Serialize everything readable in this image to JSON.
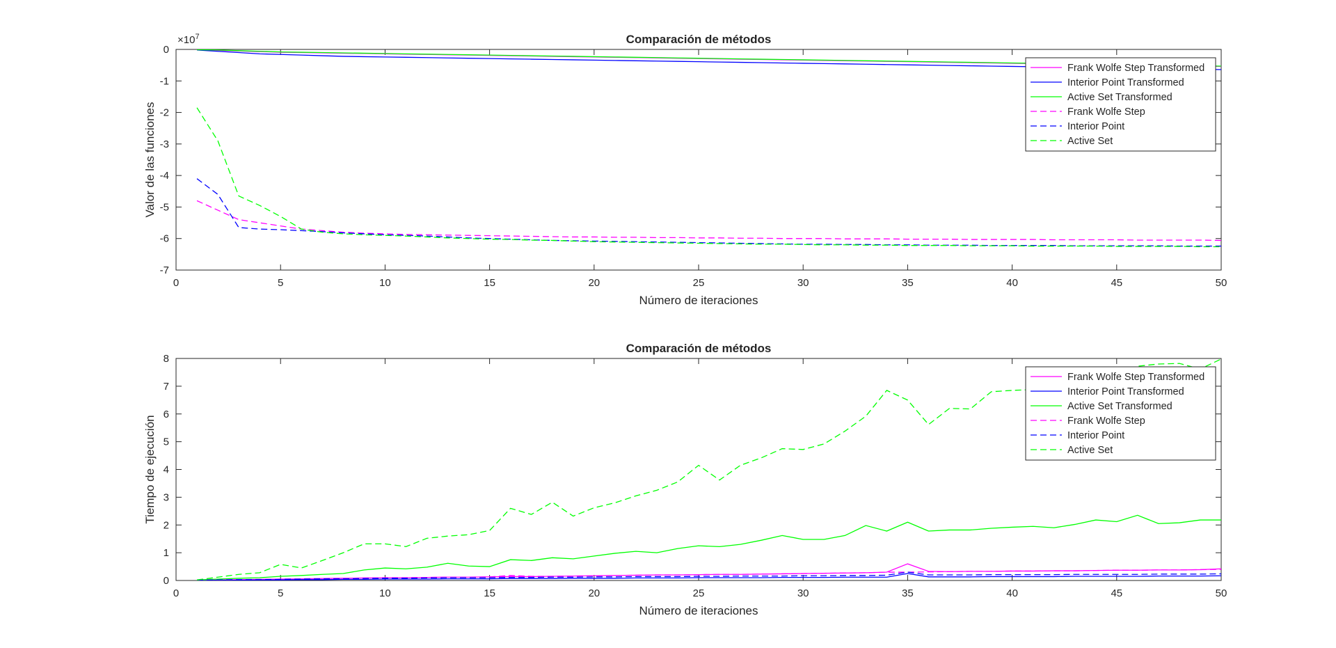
{
  "figure": {
    "background": "#ffffff"
  },
  "chart_data": [
    {
      "type": "line",
      "title": "Comparación de métodos",
      "xlabel": "Número de iteraciones",
      "ylabel": "Valor de las funciones",
      "exponent_label": "×10",
      "exponent_power": "7",
      "xlim": [
        0,
        50
      ],
      "ylim": [
        -7,
        0
      ],
      "xticks": [
        0,
        5,
        10,
        15,
        20,
        25,
        30,
        35,
        40,
        45,
        50
      ],
      "yticks": [
        0,
        -1,
        -2,
        -3,
        -4,
        -5,
        -6,
        -7
      ],
      "legend_position": "top-right",
      "grid": false,
      "x": [
        1,
        2,
        3,
        4,
        5,
        6,
        7,
        8,
        9,
        10,
        11,
        12,
        13,
        14,
        15,
        16,
        17,
        18,
        19,
        20,
        21,
        22,
        23,
        24,
        25,
        26,
        27,
        28,
        29,
        30,
        31,
        32,
        33,
        34,
        35,
        36,
        37,
        38,
        39,
        40,
        41,
        42,
        43,
        44,
        45,
        46,
        47,
        48,
        49,
        50
      ],
      "series": [
        {
          "name": "Frank Wolfe Step Transformed",
          "color": "#ff00ff",
          "style": "solid",
          "values": [
            -0.01,
            -0.03,
            -0.05,
            -0.07,
            -0.09,
            -0.1,
            -0.11,
            -0.12,
            -0.13,
            -0.14,
            -0.15,
            -0.16,
            -0.17,
            -0.18,
            -0.19,
            -0.2,
            -0.21,
            -0.22,
            -0.23,
            -0.24,
            -0.25,
            -0.26,
            -0.27,
            -0.28,
            -0.29,
            -0.3,
            -0.31,
            -0.32,
            -0.33,
            -0.34,
            -0.35,
            -0.36,
            -0.37,
            -0.38,
            -0.39,
            -0.4,
            -0.41,
            -0.42,
            -0.43,
            -0.44,
            -0.45,
            -0.46,
            -0.47,
            -0.48,
            -0.49,
            -0.5,
            -0.51,
            -0.52,
            -0.53,
            -0.54
          ]
        },
        {
          "name": "Interior Point Transformed",
          "color": "#0000ff",
          "style": "solid",
          "values": [
            -0.02,
            -0.06,
            -0.1,
            -0.14,
            -0.16,
            -0.18,
            -0.2,
            -0.22,
            -0.23,
            -0.24,
            -0.25,
            -0.26,
            -0.27,
            -0.28,
            -0.29,
            -0.3,
            -0.31,
            -0.32,
            -0.33,
            -0.34,
            -0.35,
            -0.36,
            -0.37,
            -0.38,
            -0.39,
            -0.4,
            -0.41,
            -0.42,
            -0.43,
            -0.44,
            -0.45,
            -0.46,
            -0.47,
            -0.48,
            -0.49,
            -0.5,
            -0.51,
            -0.52,
            -0.53,
            -0.54,
            -0.55,
            -0.56,
            -0.57,
            -0.58,
            -0.59,
            -0.6,
            -0.61,
            -0.62,
            -0.63,
            -0.64
          ]
        },
        {
          "name": "Active Set Transformed",
          "color": "#00ff00",
          "style": "solid",
          "values": [
            -0.01,
            -0.02,
            -0.04,
            -0.06,
            -0.08,
            -0.09,
            -0.1,
            -0.11,
            -0.12,
            -0.13,
            -0.14,
            -0.15,
            -0.16,
            -0.17,
            -0.18,
            -0.19,
            -0.2,
            -0.21,
            -0.22,
            -0.23,
            -0.24,
            -0.25,
            -0.26,
            -0.27,
            -0.28,
            -0.29,
            -0.3,
            -0.31,
            -0.32,
            -0.33,
            -0.34,
            -0.35,
            -0.36,
            -0.37,
            -0.38,
            -0.39,
            -0.4,
            -0.41,
            -0.42,
            -0.43,
            -0.44,
            -0.45,
            -0.46,
            -0.47,
            -0.48,
            -0.49,
            -0.5,
            -0.51,
            -0.52,
            -0.53
          ]
        },
        {
          "name": "Frank Wolfe Step",
          "color": "#ff00ff",
          "style": "dashed",
          "values": [
            -4.8,
            -5.1,
            -5.4,
            -5.5,
            -5.6,
            -5.7,
            -5.75,
            -5.8,
            -5.83,
            -5.85,
            -5.87,
            -5.88,
            -5.89,
            -5.9,
            -5.91,
            -5.92,
            -5.93,
            -5.94,
            -5.95,
            -5.95,
            -5.96,
            -5.96,
            -5.97,
            -5.97,
            -5.98,
            -5.98,
            -5.99,
            -5.99,
            -6.0,
            -6.0,
            -6.0,
            -6.01,
            -6.01,
            -6.01,
            -6.02,
            -6.02,
            -6.02,
            -6.03,
            -6.03,
            -6.03,
            -6.03,
            -6.04,
            -6.04,
            -6.04,
            -6.04,
            -6.05,
            -6.05,
            -6.05,
            -6.05,
            -6.06
          ]
        },
        {
          "name": "Interior Point",
          "color": "#0000ff",
          "style": "dashed",
          "values": [
            -4.1,
            -4.6,
            -5.65,
            -5.7,
            -5.72,
            -5.75,
            -5.78,
            -5.82,
            -5.85,
            -5.88,
            -5.9,
            -5.92,
            -5.95,
            -5.98,
            -6.0,
            -6.02,
            -6.04,
            -6.06,
            -6.07,
            -6.08,
            -6.09,
            -6.1,
            -6.11,
            -6.12,
            -6.13,
            -6.14,
            -6.15,
            -6.16,
            -6.17,
            -6.18,
            -6.18,
            -6.19,
            -6.19,
            -6.2,
            -6.2,
            -6.21,
            -6.21,
            -6.21,
            -6.22,
            -6.22,
            -6.22,
            -6.22,
            -6.23,
            -6.23,
            -6.23,
            -6.23,
            -6.23,
            -6.24,
            -6.24,
            -6.24
          ]
        },
        {
          "name": "Active Set",
          "color": "#00ff00",
          "style": "dashed",
          "values": [
            -1.85,
            -2.9,
            -4.65,
            -4.95,
            -5.3,
            -5.7,
            -5.8,
            -5.85,
            -5.88,
            -5.9,
            -5.92,
            -5.95,
            -5.98,
            -6.0,
            -6.02,
            -6.03,
            -6.05,
            -6.06,
            -6.08,
            -6.1,
            -6.11,
            -6.12,
            -6.13,
            -6.14,
            -6.15,
            -6.16,
            -6.17,
            -6.18,
            -6.18,
            -6.19,
            -6.2,
            -6.2,
            -6.21,
            -6.21,
            -6.22,
            -6.22,
            -6.22,
            -6.23,
            -6.23,
            -6.23,
            -6.24,
            -6.24,
            -6.24,
            -6.24,
            -6.25,
            -6.25,
            -6.25,
            -6.25,
            -6.26,
            -6.26
          ]
        }
      ]
    },
    {
      "type": "line",
      "title": "Comparación de métodos",
      "xlabel": "Número de iteraciones",
      "ylabel": "Tiempo de ejecución",
      "xlim": [
        0,
        50
      ],
      "ylim": [
        0,
        8
      ],
      "xticks": [
        0,
        5,
        10,
        15,
        20,
        25,
        30,
        35,
        40,
        45,
        50
      ],
      "yticks": [
        0,
        1,
        2,
        3,
        4,
        5,
        6,
        7,
        8
      ],
      "legend_position": "top-right",
      "grid": false,
      "x": [
        1,
        2,
        3,
        4,
        5,
        6,
        7,
        8,
        9,
        10,
        11,
        12,
        13,
        14,
        15,
        16,
        17,
        18,
        19,
        20,
        21,
        22,
        23,
        24,
        25,
        26,
        27,
        28,
        29,
        30,
        31,
        32,
        33,
        34,
        35,
        36,
        37,
        38,
        39,
        40,
        41,
        42,
        43,
        44,
        45,
        46,
        47,
        48,
        49,
        50
      ],
      "series": [
        {
          "name": "Frank Wolfe Step Transformed",
          "color": "#ff00ff",
          "style": "solid",
          "values": [
            0.01,
            0.02,
            0.03,
            0.04,
            0.05,
            0.06,
            0.07,
            0.08,
            0.09,
            0.1,
            0.1,
            0.11,
            0.12,
            0.12,
            0.13,
            0.14,
            0.14,
            0.15,
            0.16,
            0.17,
            0.18,
            0.19,
            0.2,
            0.2,
            0.21,
            0.22,
            0.22,
            0.23,
            0.24,
            0.25,
            0.26,
            0.27,
            0.28,
            0.3,
            0.6,
            0.33,
            0.32,
            0.33,
            0.33,
            0.34,
            0.34,
            0.35,
            0.35,
            0.36,
            0.37,
            0.37,
            0.38,
            0.38,
            0.39,
            0.42
          ]
        },
        {
          "name": "Interior Point Transformed",
          "color": "#0000ff",
          "style": "solid",
          "values": [
            0.0,
            0.01,
            0.01,
            0.02,
            0.02,
            0.03,
            0.03,
            0.04,
            0.04,
            0.05,
            0.05,
            0.05,
            0.06,
            0.06,
            0.06,
            0.07,
            0.07,
            0.07,
            0.08,
            0.08,
            0.08,
            0.09,
            0.09,
            0.09,
            0.1,
            0.1,
            0.1,
            0.1,
            0.11,
            0.11,
            0.11,
            0.12,
            0.12,
            0.12,
            0.25,
            0.13,
            0.13,
            0.13,
            0.14,
            0.14,
            0.14,
            0.14,
            0.15,
            0.15,
            0.15,
            0.15,
            0.16,
            0.16,
            0.16,
            0.17
          ]
        },
        {
          "name": "Active Set Transformed",
          "color": "#00ff00",
          "style": "solid",
          "values": [
            0.02,
            0.05,
            0.08,
            0.1,
            0.15,
            0.18,
            0.22,
            0.25,
            0.38,
            0.45,
            0.42,
            0.48,
            0.62,
            0.52,
            0.5,
            0.75,
            0.72,
            0.82,
            0.78,
            0.88,
            0.98,
            1.05,
            1.0,
            1.15,
            1.25,
            1.22,
            1.3,
            1.45,
            1.62,
            1.48,
            1.48,
            1.62,
            1.98,
            1.78,
            2.1,
            1.78,
            1.82,
            1.82,
            1.88,
            1.92,
            1.95,
            1.9,
            2.02,
            2.18,
            2.12,
            2.35,
            2.05,
            2.08,
            2.18,
            2.18
          ]
        },
        {
          "name": "Frank Wolfe Step",
          "color": "#ff00ff",
          "style": "dashed",
          "values": [
            0.01,
            0.02,
            0.03,
            0.04,
            0.05,
            0.06,
            0.07,
            0.08,
            0.09,
            0.1,
            0.1,
            0.11,
            0.12,
            0.12,
            0.13,
            0.18,
            0.15,
            0.15,
            0.16,
            0.17,
            0.18,
            0.19,
            0.2,
            0.2,
            0.21,
            0.22,
            0.22,
            0.23,
            0.24,
            0.25,
            0.26,
            0.27,
            0.28,
            0.3,
            0.3,
            0.31,
            0.32,
            0.33,
            0.33,
            0.34,
            0.34,
            0.35,
            0.35,
            0.36,
            0.37,
            0.37,
            0.38,
            0.38,
            0.39,
            0.4
          ]
        },
        {
          "name": "Interior Point",
          "color": "#0000ff",
          "style": "dashed",
          "values": [
            0.01,
            0.02,
            0.03,
            0.03,
            0.04,
            0.05,
            0.06,
            0.06,
            0.07,
            0.08,
            0.08,
            0.09,
            0.1,
            0.1,
            0.1,
            0.11,
            0.11,
            0.12,
            0.12,
            0.13,
            0.13,
            0.14,
            0.14,
            0.14,
            0.15,
            0.15,
            0.16,
            0.16,
            0.16,
            0.17,
            0.17,
            0.18,
            0.18,
            0.19,
            0.3,
            0.2,
            0.2,
            0.2,
            0.21,
            0.21,
            0.21,
            0.21,
            0.22,
            0.22,
            0.22,
            0.22,
            0.23,
            0.23,
            0.23,
            0.24
          ]
        },
        {
          "name": "Active Set",
          "color": "#00ff00",
          "style": "dashed",
          "values": [
            0.02,
            0.12,
            0.22,
            0.28,
            0.58,
            0.45,
            0.72,
            1.0,
            1.32,
            1.32,
            1.22,
            1.52,
            1.6,
            1.65,
            1.8,
            2.6,
            2.38,
            2.82,
            2.32,
            2.62,
            2.8,
            3.05,
            3.25,
            3.55,
            4.15,
            3.62,
            4.15,
            4.42,
            4.75,
            4.72,
            4.92,
            5.38,
            5.92,
            6.85,
            6.5,
            5.62,
            6.2,
            6.18,
            6.8,
            6.85,
            6.88,
            6.92,
            7.15,
            7.32,
            7.52,
            7.72,
            7.8,
            7.82,
            7.62,
            7.98
          ]
        }
      ]
    }
  ]
}
